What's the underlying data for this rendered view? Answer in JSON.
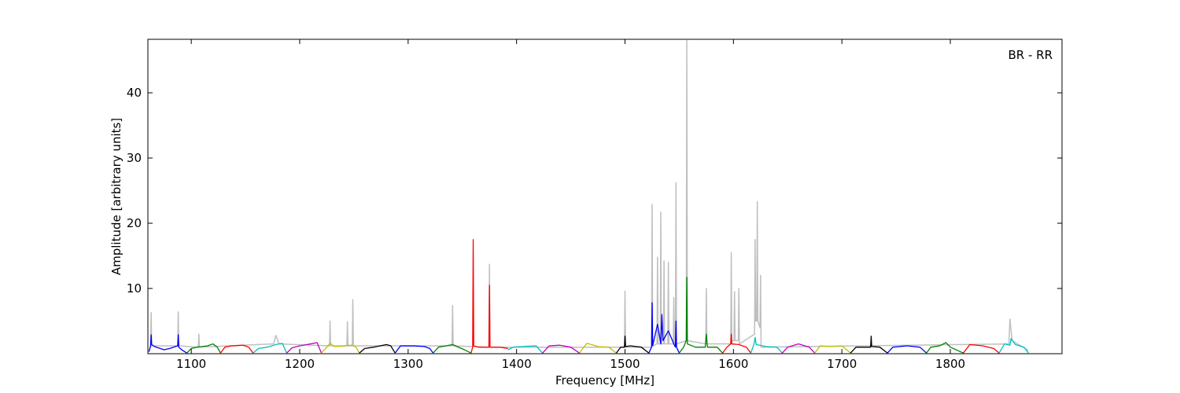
{
  "chart_data": {
    "type": "line",
    "annotation": "BR - RR",
    "x_label": "Frequency [MHz]",
    "y_label": "Amplitude [arbitrary units]",
    "xlim": [
      1060,
      1903
    ],
    "xticks": [
      1100,
      1200,
      1300,
      1400,
      1500,
      1600,
      1700,
      1800
    ],
    "ylim": [
      0,
      48.2
    ],
    "yticks": [
      10,
      20,
      30,
      40
    ],
    "grid": false,
    "series": [
      {
        "color": "#bfbfbf",
        "x": [
          1061,
          1062.5,
          1063,
          1063.5,
          1087.5,
          1088,
          1088.5,
          1106.5,
          1107,
          1107.5,
          1176,
          1178,
          1181,
          1227.5,
          1228,
          1228.5,
          1243.5,
          1244,
          1244.5,
          1248.5,
          1249,
          1249.5,
          1340.5,
          1341,
          1341.5,
          1374.5,
          1375,
          1375.5,
          1499.5,
          1500,
          1500.5,
          1524.5,
          1525,
          1525.5,
          1529.5,
          1530,
          1530.5,
          1532.5,
          1533,
          1533.5,
          1535.5,
          1536,
          1536.5,
          1539.5,
          1540,
          1540.5,
          1544.5,
          1545,
          1545.5,
          1546.5,
          1547,
          1547.5,
          1556.5,
          1557,
          1557.5,
          1574.5,
          1575,
          1575.5,
          1597.5,
          1598,
          1598.5,
          1600.5,
          1601,
          1601.5,
          1604.5,
          1605,
          1605.5,
          1619.5,
          1620,
          1620.5,
          1621.5,
          1622,
          1622.5,
          1624.5,
          1625,
          1625.5,
          1854,
          1855,
          1857,
          1872
        ],
        "values": [
          0.3,
          1.2,
          6.3,
          1.2,
          1.2,
          6.4,
          1.2,
          1.0,
          3.0,
          1.0,
          1.5,
          2.8,
          1.5,
          1.2,
          5.0,
          1.2,
          1.2,
          4.9,
          1.2,
          1.2,
          8.3,
          1.2,
          1.2,
          7.4,
          1.2,
          1.0,
          13.7,
          1.0,
          1.0,
          9.6,
          1.0,
          1.0,
          22.9,
          1.2,
          1.5,
          14.8,
          1.5,
          1.5,
          21.7,
          1.5,
          1.5,
          14.2,
          1.5,
          1.5,
          14.0,
          1.5,
          1.5,
          8.6,
          1.5,
          1.5,
          26.2,
          1.5,
          2,
          48,
          2,
          1.5,
          10,
          1.5,
          1.5,
          15.5,
          2,
          2,
          9.5,
          2,
          2,
          10,
          1.5,
          3,
          17.5,
          5,
          5,
          23.3,
          5,
          4,
          12,
          1.0,
          1.5,
          5.3,
          2.0,
          0.5
        ]
      },
      {
        "color": "#0000ff",
        "x": [
          1061,
          1062.5,
          1063,
          1063.5,
          1066,
          1075,
          1080,
          1087.5,
          1088,
          1088.5,
          1092,
          1096
        ],
        "values": [
          0.3,
          1.2,
          2.9,
          1.4,
          1.1,
          0.6,
          0.8,
          1.2,
          2.9,
          1.0,
          0.5,
          0.1
        ]
      },
      {
        "color": "#008000",
        "x": [
          1096,
          1100,
          1105,
          1115,
          1120,
          1124,
          1127
        ],
        "values": [
          0.1,
          0.8,
          1.0,
          1.2,
          1.5,
          1.0,
          0.1
        ]
      },
      {
        "color": "#ff0000",
        "x": [
          1127,
          1131,
          1137,
          1148,
          1153,
          1157
        ],
        "values": [
          0.1,
          1.0,
          1.2,
          1.3,
          1.0,
          0.1
        ]
      },
      {
        "color": "#00bfbf",
        "x": [
          1157,
          1162,
          1170,
          1178,
          1184,
          1188
        ],
        "values": [
          0.1,
          0.8,
          1.0,
          1.4,
          1.6,
          0.1
        ]
      },
      {
        "color": "#bf00bf",
        "x": [
          1188,
          1193,
          1200,
          1210,
          1216,
          1220
        ],
        "values": [
          0.1,
          0.9,
          1.2,
          1.5,
          1.7,
          0.1
        ]
      },
      {
        "color": "#bfbf00",
        "x": [
          1220,
          1225,
          1228,
          1232,
          1240,
          1248,
          1252,
          1255
        ],
        "values": [
          0.1,
          1.0,
          1.6,
          1.1,
          1.2,
          1.3,
          1.0,
          0.1
        ]
      },
      {
        "color": "#000000",
        "x": [
          1255,
          1260,
          1268,
          1280,
          1284,
          1288
        ],
        "values": [
          0.1,
          0.8,
          1.0,
          1.4,
          1.2,
          0.1
        ]
      },
      {
        "color": "#0000ff",
        "x": [
          1288,
          1293,
          1305,
          1315,
          1320,
          1323
        ],
        "values": [
          0.1,
          1.2,
          1.2,
          1.1,
          0.8,
          0.1
        ]
      },
      {
        "color": "#008000",
        "x": [
          1323,
          1328,
          1335,
          1341,
          1345,
          1352,
          1358
        ],
        "values": [
          0.1,
          1.0,
          1.2,
          1.4,
          1.1,
          0.6,
          0.1
        ]
      },
      {
        "color": "#ff0000",
        "x": [
          1358,
          1359.5,
          1360,
          1360.5,
          1365,
          1374.5,
          1375,
          1375.5,
          1385,
          1392
        ],
        "values": [
          0.1,
          1.0,
          17.5,
          1.2,
          1.0,
          1.0,
          10.5,
          1.0,
          1.0,
          0.8
        ]
      },
      {
        "color": "#00bfbf",
        "x": [
          1392,
          1397,
          1405,
          1418,
          1424
        ],
        "values": [
          0.6,
          1.0,
          1.1,
          1.2,
          0.1
        ]
      },
      {
        "color": "#bf00bf",
        "x": [
          1424,
          1430,
          1440,
          1450,
          1458
        ],
        "values": [
          0.1,
          1.2,
          1.3,
          1.0,
          0.1
        ]
      },
      {
        "color": "#bfbf00",
        "x": [
          1458,
          1462,
          1465,
          1475,
          1485,
          1492
        ],
        "values": [
          0.1,
          1.0,
          1.6,
          1.1,
          1.0,
          0.1
        ]
      },
      {
        "color": "#000000",
        "x": [
          1492,
          1496,
          1499.5,
          1500,
          1500.5,
          1505,
          1515,
          1522
        ],
        "values": [
          0.1,
          1.0,
          1.0,
          2.7,
          1.1,
          1.2,
          1.0,
          0.1
        ]
      },
      {
        "color": "#0000ff",
        "x": [
          1522,
          1524.5,
          1525,
          1525.5,
          1530,
          1533,
          1534,
          1535,
          1540,
          1545,
          1546.5,
          1547,
          1547.5,
          1550
        ],
        "values": [
          0.1,
          1.0,
          7.8,
          1.2,
          4.5,
          1.5,
          6.0,
          2.0,
          3.5,
          1.5,
          1.0,
          5.0,
          1.0,
          0.1
        ]
      },
      {
        "color": "#008000",
        "x": [
          1550,
          1554,
          1556.5,
          1557,
          1557.5,
          1565,
          1574,
          1575,
          1576,
          1585,
          1590
        ],
        "values": [
          0.1,
          1.0,
          2.0,
          11.7,
          1.5,
          1.0,
          1.0,
          3.0,
          1.0,
          1.0,
          0.1
        ]
      },
      {
        "color": "#ff0000",
        "x": [
          1590,
          1594,
          1597.5,
          1598,
          1598.5,
          1605,
          1612,
          1616
        ],
        "values": [
          0.1,
          1.0,
          1.5,
          3.0,
          1.5,
          1.4,
          1.0,
          0.1
        ]
      },
      {
        "color": "#00bfbf",
        "x": [
          1616,
          1619,
          1620,
          1621,
          1630,
          1640,
          1645
        ],
        "values": [
          0.1,
          1.5,
          2.5,
          1.4,
          1.1,
          1.0,
          0.1
        ]
      },
      {
        "color": "#bf00bf",
        "x": [
          1645,
          1650,
          1660,
          1670,
          1675
        ],
        "values": [
          0.1,
          1.0,
          1.5,
          1.0,
          0.1
        ]
      },
      {
        "color": "#bfbf00",
        "x": [
          1675,
          1680,
          1690,
          1700,
          1708
        ],
        "values": [
          0.1,
          1.2,
          1.1,
          1.2,
          0.1
        ]
      },
      {
        "color": "#000000",
        "x": [
          1708,
          1713,
          1726.5,
          1727,
          1727.5,
          1735,
          1742
        ],
        "values": [
          0.1,
          1.0,
          1.0,
          2.7,
          1.1,
          1.0,
          0.1
        ]
      },
      {
        "color": "#0000ff",
        "x": [
          1742,
          1747,
          1760,
          1772,
          1778
        ],
        "values": [
          0.1,
          1.0,
          1.2,
          1.0,
          0.1
        ]
      },
      {
        "color": "#008000",
        "x": [
          1778,
          1782,
          1790,
          1796,
          1800,
          1812
        ],
        "values": [
          0.1,
          1.0,
          1.2,
          1.7,
          1.0,
          0.1
        ]
      },
      {
        "color": "#ff0000",
        "x": [
          1812,
          1818,
          1830,
          1840,
          1845
        ],
        "values": [
          0.1,
          1.4,
          1.2,
          0.8,
          0.1
        ]
      },
      {
        "color": "#00bfbf",
        "x": [
          1845,
          1850,
          1855,
          1856,
          1860,
          1868,
          1872
        ],
        "values": [
          0.1,
          1.5,
          1.3,
          2.3,
          1.4,
          1.0,
          0.1
        ]
      }
    ]
  }
}
